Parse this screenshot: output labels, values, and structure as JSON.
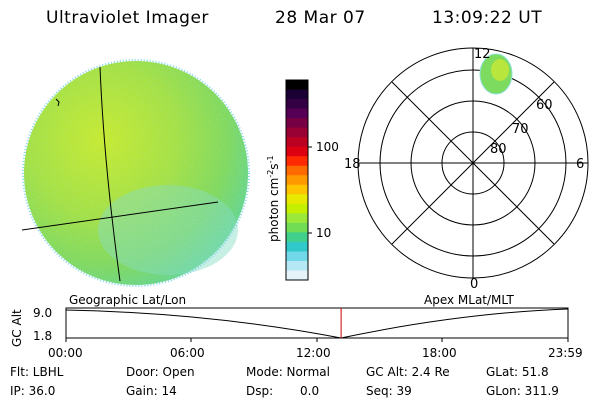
{
  "header": {
    "title": "Ultraviolet Imager",
    "date": "28 Mar 07",
    "time": "13:09:22 UT"
  },
  "colorbar": {
    "label": "photon cm",
    "label_sup1": "-2",
    "label_mid": "s",
    "label_sup2": "-1",
    "ticks": [
      "100",
      "10"
    ],
    "colors": [
      "#000000",
      "#1a0033",
      "#330044",
      "#550055",
      "#770044",
      "#990033",
      "#bb0022",
      "#dd0011",
      "#ff2a00",
      "#ff6a00",
      "#ff9900",
      "#ffc400",
      "#e8e800",
      "#c4f000",
      "#9ce83a",
      "#70dd55",
      "#40d08c",
      "#30c8c8",
      "#70d8e8",
      "#b4e8f4",
      "#e6f4fa"
    ]
  },
  "polar": {
    "labels": {
      "top": "12",
      "bottom": "0",
      "left": "18",
      "right": "6"
    },
    "rings": [
      "60",
      "70",
      "80"
    ]
  },
  "timeline": {
    "left_title": "Geographic Lat/Lon",
    "right_title": "Apex MLat/MLT",
    "ylabel": "GC Alt",
    "ymax": "9.0",
    "ymin": "1.8",
    "xticks": [
      "00:00",
      "06:00",
      "12:00",
      "18:00",
      "23:59"
    ],
    "current_fraction": 0.5481
  },
  "info": {
    "flt": "Flt: LBHL",
    "ip": "IP: 36.0",
    "door": "Door: Open",
    "gain": "Gain: 14",
    "mode": "Mode: Normal",
    "dsp": "Dsp:",
    "dsp_val": "0.0",
    "gcalt": "GC Alt: 2.4 Re",
    "seq": "Seq: 39",
    "glat": "GLat: 51.8",
    "glon": "GLon: 311.9"
  }
}
